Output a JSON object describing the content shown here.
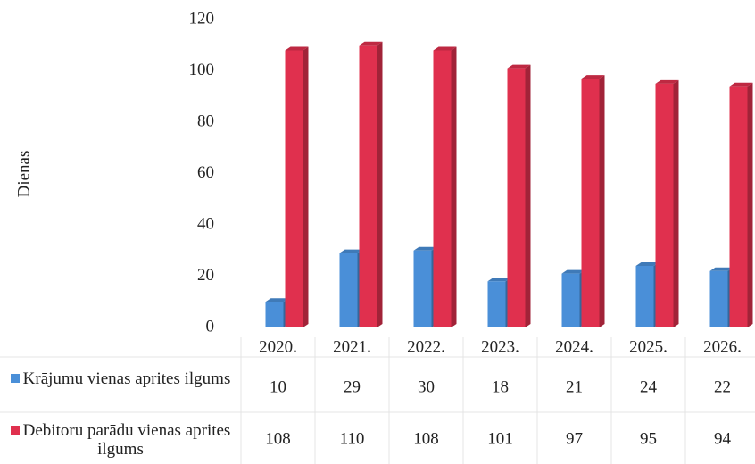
{
  "chart_data": {
    "type": "bar3d",
    "y_axis_label": "Dienas",
    "categories": [
      "2020.",
      "2021.",
      "2022.",
      "2023.",
      "2024.",
      "2025.",
      "2026."
    ],
    "series": [
      {
        "name": "Krājumu vienas aprites ilgums",
        "color": "#4a8fd8",
        "values": [
          10,
          29,
          30,
          18,
          21,
          24,
          22
        ]
      },
      {
        "name": "Debitoru parādu vienas aprites ilgums",
        "color": "#e0304e",
        "values": [
          108,
          110,
          108,
          101,
          97,
          95,
          94
        ]
      }
    ],
    "ylim": [
      0,
      120
    ],
    "yticks": [
      0,
      20,
      40,
      60,
      80,
      100,
      120
    ],
    "grid": false
  }
}
